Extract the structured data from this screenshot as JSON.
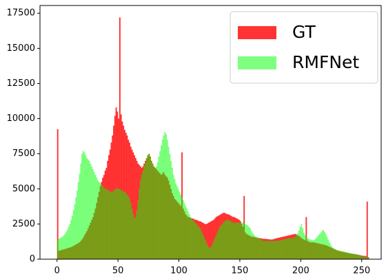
{
  "chart_data": {
    "type": "histogram",
    "bins": [
      0,
      1,
      2,
      3,
      4,
      5,
      6,
      7,
      8,
      9,
      10,
      11,
      12,
      13,
      14,
      15,
      16,
      17,
      18,
      19,
      20,
      21,
      22,
      23,
      24,
      25,
      26,
      27,
      28,
      29,
      30,
      31,
      32,
      33,
      34,
      35,
      36,
      37,
      38,
      39,
      40,
      41,
      42,
      43,
      44,
      45,
      46,
      47,
      48,
      49,
      50,
      51,
      52,
      53,
      54,
      55,
      56,
      57,
      58,
      59,
      60,
      61,
      62,
      63,
      64,
      65,
      66,
      67,
      68,
      69,
      70,
      71,
      72,
      73,
      74,
      75,
      76,
      77,
      78,
      79,
      80,
      81,
      82,
      83,
      84,
      85,
      86,
      87,
      88,
      89,
      90,
      91,
      92,
      93,
      94,
      95,
      96,
      97,
      98,
      99,
      100,
      101,
      102,
      103,
      104,
      105,
      106,
      107,
      108,
      109,
      110,
      111,
      112,
      113,
      114,
      115,
      116,
      117,
      118,
      119,
      120,
      121,
      122,
      123,
      124,
      125,
      126,
      127,
      128,
      129,
      130,
      131,
      132,
      133,
      134,
      135,
      136,
      137,
      138,
      139,
      140,
      141,
      142,
      143,
      144,
      145,
      146,
      147,
      148,
      149,
      150,
      151,
      152,
      153,
      154,
      155,
      156,
      157,
      158,
      159,
      160,
      161,
      162,
      163,
      164,
      165,
      166,
      167,
      168,
      169,
      170,
      171,
      172,
      173,
      174,
      175,
      176,
      177,
      178,
      179,
      180,
      181,
      182,
      183,
      184,
      185,
      186,
      187,
      188,
      189,
      190,
      191,
      192,
      193,
      194,
      195,
      196,
      197,
      198,
      199,
      200,
      201,
      202,
      203,
      204,
      205,
      206,
      207,
      208,
      209,
      210,
      211,
      212,
      213,
      214,
      215,
      216,
      217,
      218,
      219,
      220,
      221,
      222,
      223,
      224,
      225,
      226,
      227,
      228,
      229,
      230,
      231,
      232,
      233,
      234,
      235,
      236,
      237,
      238,
      239,
      240,
      241,
      242,
      243,
      244,
      245,
      246,
      247,
      248,
      249,
      250,
      251,
      252,
      253,
      254,
      255,
      256
    ],
    "series": [
      {
        "name": "GT",
        "color": "#ff0000",
        "alpha": 0.8,
        "values": [
          9250,
          600,
          620,
          650,
          680,
          700,
          720,
          750,
          780,
          800,
          830,
          860,
          900,
          950,
          1000,
          1050,
          1100,
          1150,
          1200,
          1300,
          1400,
          1550,
          1700,
          1850,
          2000,
          2200,
          2400,
          2600,
          2800,
          3000,
          3300,
          3600,
          4000,
          4400,
          4800,
          5200,
          5500,
          5800,
          6000,
          6300,
          6500,
          7000,
          7400,
          7800,
          8300,
          8800,
          9500,
          10200,
          10800,
          10500,
          10000,
          17200,
          10300,
          9800,
          9500,
          9200,
          9000,
          8800,
          8500,
          8300,
          8000,
          7800,
          7600,
          7400,
          7200,
          7000,
          6800,
          6700,
          6600,
          6500,
          6600,
          6800,
          7000,
          7200,
          7400,
          7500,
          7300,
          7000,
          6800,
          6600,
          6500,
          6400,
          6300,
          6200,
          6100,
          6000,
          6100,
          6200,
          6000,
          5900,
          5800,
          5600,
          5300,
          5000,
          4700,
          4500,
          4300,
          4200,
          4100,
          4000,
          3900,
          3800,
          7600,
          3600,
          3400,
          3200,
          3100,
          3000,
          3000,
          2950,
          2900,
          2900,
          2850,
          2800,
          2800,
          2750,
          2700,
          2700,
          2650,
          2600,
          2550,
          2500,
          2500,
          2550,
          2600,
          2650,
          2700,
          2750,
          2800,
          2900,
          3000,
          3050,
          3100,
          3150,
          3200,
          3250,
          3300,
          3300,
          3250,
          3200,
          3200,
          3150,
          3100,
          3050,
          3000,
          3000,
          2950,
          2900,
          2850,
          2800,
          2700,
          2500,
          2300,
          4500,
          1900,
          1800,
          1750,
          1700,
          1650,
          1600,
          1600,
          1580,
          1560,
          1540,
          1520,
          1500,
          1500,
          1480,
          1460,
          1450,
          1450,
          1440,
          1430,
          1420,
          1410,
          1400,
          1400,
          1420,
          1450,
          1480,
          1500,
          1520,
          1540,
          1560,
          1580,
          1600,
          1620,
          1640,
          1660,
          1680,
          1700,
          1720,
          1740,
          1760,
          1780,
          1800,
          1750,
          1700,
          1650,
          1600,
          1500,
          1450,
          1400,
          1350,
          3000,
          1300,
          1250,
          1200,
          1200,
          1200,
          1200,
          1180,
          1160,
          1140,
          1120,
          1100,
          1080,
          1060,
          1040,
          1020,
          1000,
          960,
          920,
          880,
          840,
          800,
          760,
          720,
          680,
          640,
          600,
          580,
          560,
          540,
          520,
          500,
          480,
          460,
          440,
          420,
          400,
          390,
          380,
          370,
          360,
          350,
          330,
          310,
          290,
          270,
          250,
          240,
          230,
          220,
          4100,
          150
        ]
      },
      {
        "name": "RMFNet",
        "color": "#00ff00",
        "alpha": 0.5,
        "values": [
          1400,
          1450,
          1500,
          1550,
          1600,
          1700,
          1800,
          1950,
          2100,
          2300,
          2500,
          2800,
          3100,
          3500,
          3900,
          4400,
          4900,
          5500,
          6100,
          6800,
          7500,
          7700,
          7600,
          7400,
          7200,
          7100,
          7000,
          6800,
          6600,
          6400,
          6200,
          6000,
          5800,
          5600,
          5500,
          5400,
          5300,
          5200,
          5100,
          5000,
          5000,
          4900,
          4900,
          4800,
          4800,
          4800,
          4900,
          5000,
          5000,
          5100,
          5000,
          5000,
          4900,
          4900,
          4800,
          4800,
          4700,
          4600,
          4500,
          4300,
          4000,
          3600,
          3200,
          2900,
          3000,
          3500,
          4200,
          5000,
          5600,
          6000,
          6300,
          6600,
          6900,
          7200,
          7400,
          7500,
          7300,
          7000,
          6800,
          6600,
          6500,
          6600,
          6900,
          7300,
          7700,
          8100,
          8500,
          8800,
          9050,
          8900,
          8500,
          8000,
          7500,
          7000,
          6500,
          6000,
          5700,
          5400,
          5200,
          5000,
          4800,
          4600,
          4400,
          4200,
          4000,
          3800,
          3600,
          3400,
          3200,
          3000,
          2900,
          2800,
          2700,
          2600,
          2500,
          2400,
          2300,
          2200,
          2000,
          1800,
          1600,
          1400,
          1200,
          1000,
          850,
          800,
          900,
          1100,
          1300,
          1500,
          1700,
          1900,
          2100,
          2300,
          2400,
          2500,
          2600,
          2700,
          2750,
          2800,
          2800,
          2750,
          2700,
          2650,
          2600,
          2600,
          2600,
          2600,
          2600,
          2600,
          2600,
          2600,
          2600,
          2550,
          2500,
          2450,
          2400,
          2300,
          2200,
          2000,
          1850,
          1750,
          1650,
          1600,
          1550,
          1500,
          1450,
          1400,
          1350,
          1300,
          1300,
          1300,
          1300,
          1300,
          1300,
          1300,
          1300,
          1300,
          1300,
          1300,
          1300,
          1320,
          1340,
          1360,
          1380,
          1400,
          1420,
          1440,
          1460,
          1480,
          1500,
          1500,
          1500,
          1500,
          1550,
          1600,
          1700,
          1850,
          2050,
          2300,
          2500,
          2200,
          1900,
          1700,
          1600,
          1500,
          1450,
          1400,
          1400,
          1350,
          1350,
          1400,
          1500,
          1600,
          1700,
          1800,
          1900,
          2000,
          2100,
          1950,
          1800,
          1600,
          1400,
          1200,
          1050,
          900,
          800,
          750,
          700,
          650,
          650,
          620,
          600,
          580,
          560,
          540,
          520,
          500,
          480,
          460,
          440,
          420,
          400,
          380,
          360,
          340,
          320,
          300,
          280,
          250,
          220,
          200,
          180,
          160,
          140,
          120
        ]
      }
    ],
    "xlim": [
      -14,
      266
    ],
    "xticks": [
      0,
      50,
      100,
      150,
      200,
      250
    ],
    "ylim": [
      0,
      18050
    ],
    "yticks": [
      0,
      2500,
      5000,
      7500,
      10000,
      12500,
      15000,
      17500
    ],
    "legend": "upper right",
    "grid": false
  }
}
